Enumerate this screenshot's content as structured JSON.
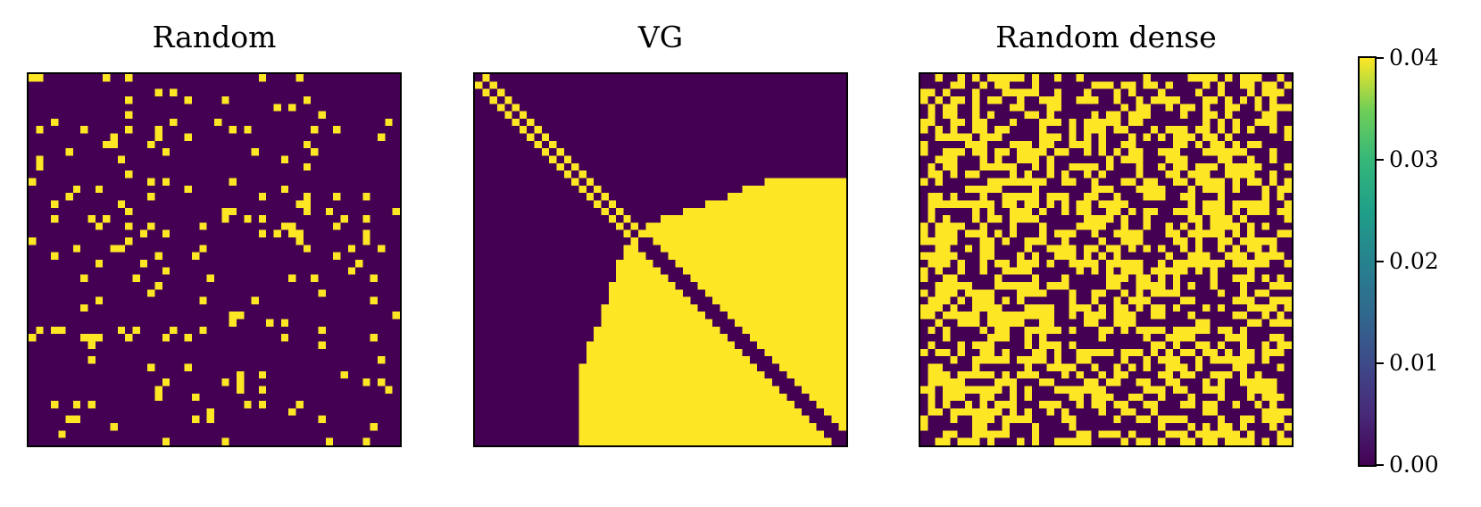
{
  "chart_data": [
    {
      "type": "heatmap",
      "title": "Random",
      "size": 50,
      "pattern": "random sparse",
      "density": 0.08,
      "colormap": "viridis",
      "vmin": 0,
      "vmax": 0.04,
      "ticks_shown": false
    },
    {
      "type": "heatmap",
      "title": "VG",
      "size": 50,
      "pattern": "visibility graph: diagonal plus lower-right block",
      "colormap": "viridis",
      "vmin": 0,
      "vmax": 0.04,
      "ticks_shown": false
    },
    {
      "type": "heatmap",
      "title": "Random dense",
      "size": 50,
      "pattern": "random dense",
      "density": 0.5,
      "colormap": "viridis",
      "vmin": 0,
      "vmax": 0.04,
      "ticks_shown": false
    }
  ],
  "colorbar": {
    "colormap": "viridis",
    "ticks": [
      "0.00",
      "0.01",
      "0.02",
      "0.03",
      "0.04"
    ],
    "range": [
      0,
      0.04
    ]
  },
  "colors": {
    "low": "#440154",
    "high": "#fde725"
  }
}
